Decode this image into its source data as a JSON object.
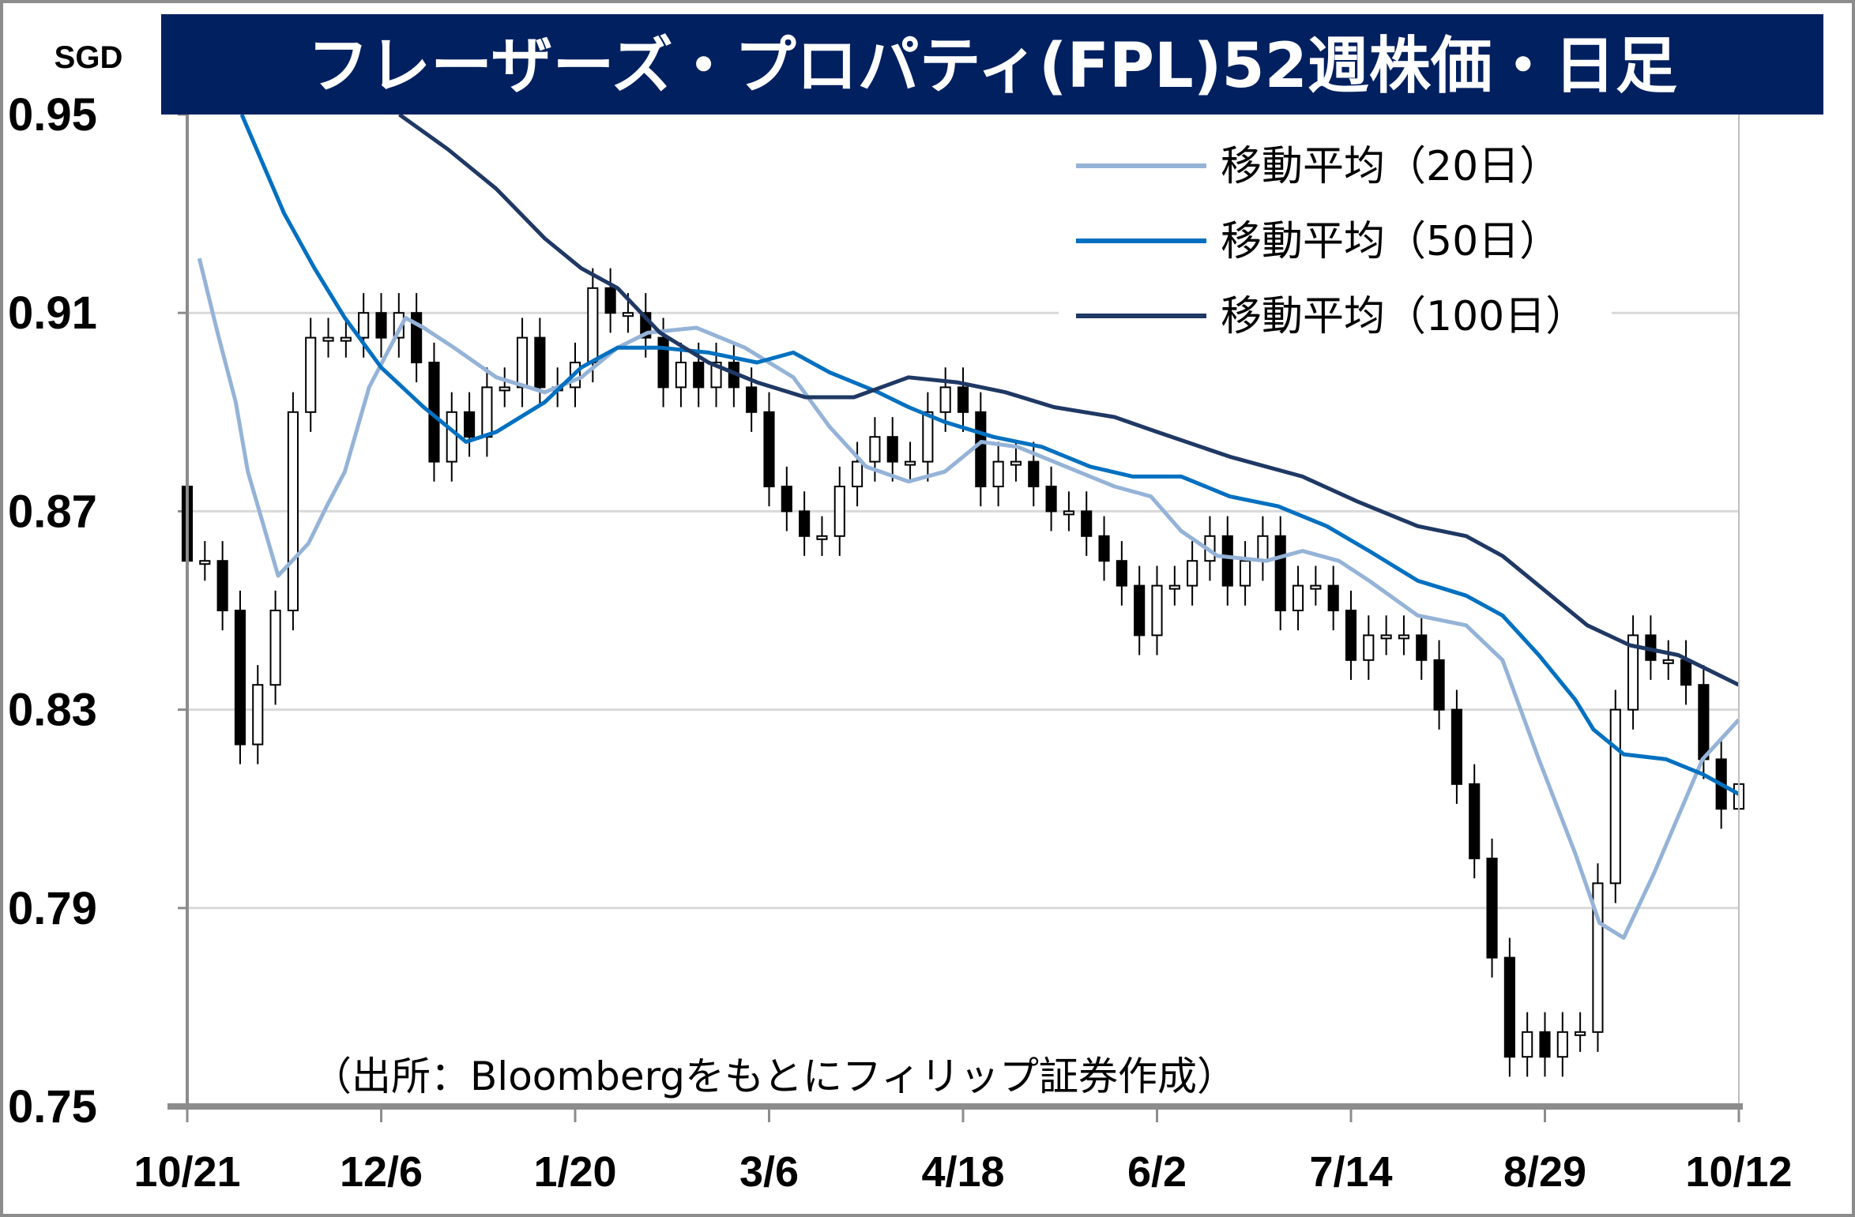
{
  "chart_data": {
    "type": "candlestick",
    "title": "フレーザーズ・プロパティ(FPL)52週株価・日足",
    "ylabel": "SGD",
    "ylim": [
      0.75,
      0.95
    ],
    "yticks": [
      "0.95",
      "0.91",
      "0.87",
      "0.83",
      "0.79",
      "0.75"
    ],
    "ytick_values": [
      0.95,
      0.91,
      0.87,
      0.83,
      0.79,
      0.75
    ],
    "xlim": [
      0,
      256
    ],
    "xtick_labels": [
      "10/21",
      "12/6",
      "1/20",
      "3/6",
      "4/18",
      "6/2",
      "7/14",
      "8/29",
      "10/12"
    ],
    "xtick_positions": [
      0,
      32,
      64,
      96,
      128,
      160,
      192,
      224,
      256
    ],
    "grid": true,
    "source": "（出所：Bloombergをもとにフィリップ証券作成）",
    "candles": {
      "first_open": 0.875,
      "closes": [
        0.86,
        0.86,
        0.85,
        0.823,
        0.835,
        0.85,
        0.89,
        0.905,
        0.905,
        0.905,
        0.91,
        0.905,
        0.91,
        0.9,
        0.88,
        0.89,
        0.885,
        0.895,
        0.895,
        0.905,
        0.895,
        0.895,
        0.9,
        0.915,
        0.91,
        0.91,
        0.905,
        0.895,
        0.9,
        0.895,
        0.9,
        0.895,
        0.89,
        0.875,
        0.87,
        0.865,
        0.865,
        0.875,
        0.88,
        0.885,
        0.88,
        0.88,
        0.89,
        0.895,
        0.89,
        0.875,
        0.88,
        0.88,
        0.875,
        0.87,
        0.87,
        0.865,
        0.86,
        0.855,
        0.845,
        0.855,
        0.855,
        0.86,
        0.865,
        0.855,
        0.86,
        0.865,
        0.85,
        0.855,
        0.855,
        0.85,
        0.84,
        0.845,
        0.845,
        0.845,
        0.84,
        0.83,
        0.815,
        0.8,
        0.78,
        0.76,
        0.765,
        0.76,
        0.765,
        0.765,
        0.795,
        0.83,
        0.845,
        0.84,
        0.84,
        0.835,
        0.82,
        0.81,
        0.815
      ],
      "up_color": "#ffffff",
      "down_color": "#000000"
    },
    "series": [
      {
        "name": "移動平均（20日）",
        "color": "#95B3D7",
        "points": [
          [
            2,
            0.921
          ],
          [
            5,
            0.906
          ],
          [
            8,
            0.892
          ],
          [
            10,
            0.878
          ],
          [
            15,
            0.857
          ],
          [
            20,
            0.8635
          ],
          [
            23,
            0.871
          ],
          [
            26,
            0.878
          ],
          [
            30,
            0.895
          ],
          [
            36,
            0.909
          ],
          [
            39,
            0.907
          ],
          [
            44,
            0.903
          ],
          [
            51,
            0.897
          ],
          [
            59,
            0.894
          ],
          [
            65,
            0.897
          ],
          [
            71,
            0.903
          ],
          [
            76,
            0.906
          ],
          [
            84,
            0.907
          ],
          [
            92,
            0.903
          ],
          [
            100,
            0.897
          ],
          [
            106,
            0.887
          ],
          [
            112,
            0.879
          ],
          [
            119,
            0.876
          ],
          [
            125,
            0.878
          ],
          [
            131,
            0.884
          ],
          [
            137,
            0.883
          ],
          [
            145,
            0.879
          ],
          [
            153,
            0.875
          ],
          [
            159,
            0.873
          ],
          [
            164,
            0.866
          ],
          [
            170,
            0.861
          ],
          [
            178,
            0.86
          ],
          [
            184,
            0.862
          ],
          [
            190,
            0.86
          ],
          [
            195,
            0.856
          ],
          [
            203,
            0.849
          ],
          [
            211,
            0.847
          ],
          [
            217,
            0.84
          ],
          [
            223,
            0.82
          ],
          [
            229,
            0.801
          ],
          [
            233,
            0.787
          ],
          [
            237,
            0.784
          ],
          [
            242,
            0.797
          ],
          [
            250,
            0.82
          ],
          [
            256,
            0.828
          ]
        ]
      },
      {
        "name": "移動平均（50日）",
        "color": "#0070C0",
        "points": [
          [
            9,
            0.95
          ],
          [
            16,
            0.93
          ],
          [
            21,
            0.919
          ],
          [
            26,
            0.909
          ],
          [
            32,
            0.899
          ],
          [
            39,
            0.891
          ],
          [
            46,
            0.884
          ],
          [
            51,
            0.886
          ],
          [
            59,
            0.892
          ],
          [
            65,
            0.899
          ],
          [
            71,
            0.903
          ],
          [
            78,
            0.903
          ],
          [
            86,
            0.902
          ],
          [
            94,
            0.9
          ],
          [
            100,
            0.902
          ],
          [
            106,
            0.898
          ],
          [
            114,
            0.894
          ],
          [
            119,
            0.891
          ],
          [
            125,
            0.888
          ],
          [
            133,
            0.885
          ],
          [
            141,
            0.883
          ],
          [
            149,
            0.879
          ],
          [
            156,
            0.877
          ],
          [
            164,
            0.877
          ],
          [
            172,
            0.873
          ],
          [
            180,
            0.871
          ],
          [
            188,
            0.867
          ],
          [
            195,
            0.862
          ],
          [
            203,
            0.856
          ],
          [
            211,
            0.853
          ],
          [
            217,
            0.849
          ],
          [
            223,
            0.841
          ],
          [
            229,
            0.832
          ],
          [
            232,
            0.826
          ],
          [
            237,
            0.821
          ],
          [
            244,
            0.82
          ],
          [
            250,
            0.817
          ],
          [
            256,
            0.813
          ]
        ]
      },
      {
        "name": "移動平均（100日）",
        "color": "#1F3864",
        "points": [
          [
            35,
            0.95
          ],
          [
            43,
            0.943
          ],
          [
            51,
            0.935
          ],
          [
            59,
            0.925
          ],
          [
            65,
            0.919
          ],
          [
            71,
            0.915
          ],
          [
            78,
            0.906
          ],
          [
            86,
            0.9
          ],
          [
            94,
            0.896
          ],
          [
            102,
            0.893
          ],
          [
            110,
            0.893
          ],
          [
            119,
            0.897
          ],
          [
            127,
            0.896
          ],
          [
            135,
            0.894
          ],
          [
            143,
            0.891
          ],
          [
            153,
            0.889
          ],
          [
            160,
            0.886
          ],
          [
            172,
            0.881
          ],
          [
            184,
            0.877
          ],
          [
            193,
            0.872
          ],
          [
            203,
            0.867
          ],
          [
            211,
            0.865
          ],
          [
            217,
            0.861
          ],
          [
            223,
            0.855
          ],
          [
            231,
            0.847
          ],
          [
            238,
            0.843
          ],
          [
            246,
            0.841
          ],
          [
            256,
            0.835
          ]
        ]
      }
    ]
  }
}
